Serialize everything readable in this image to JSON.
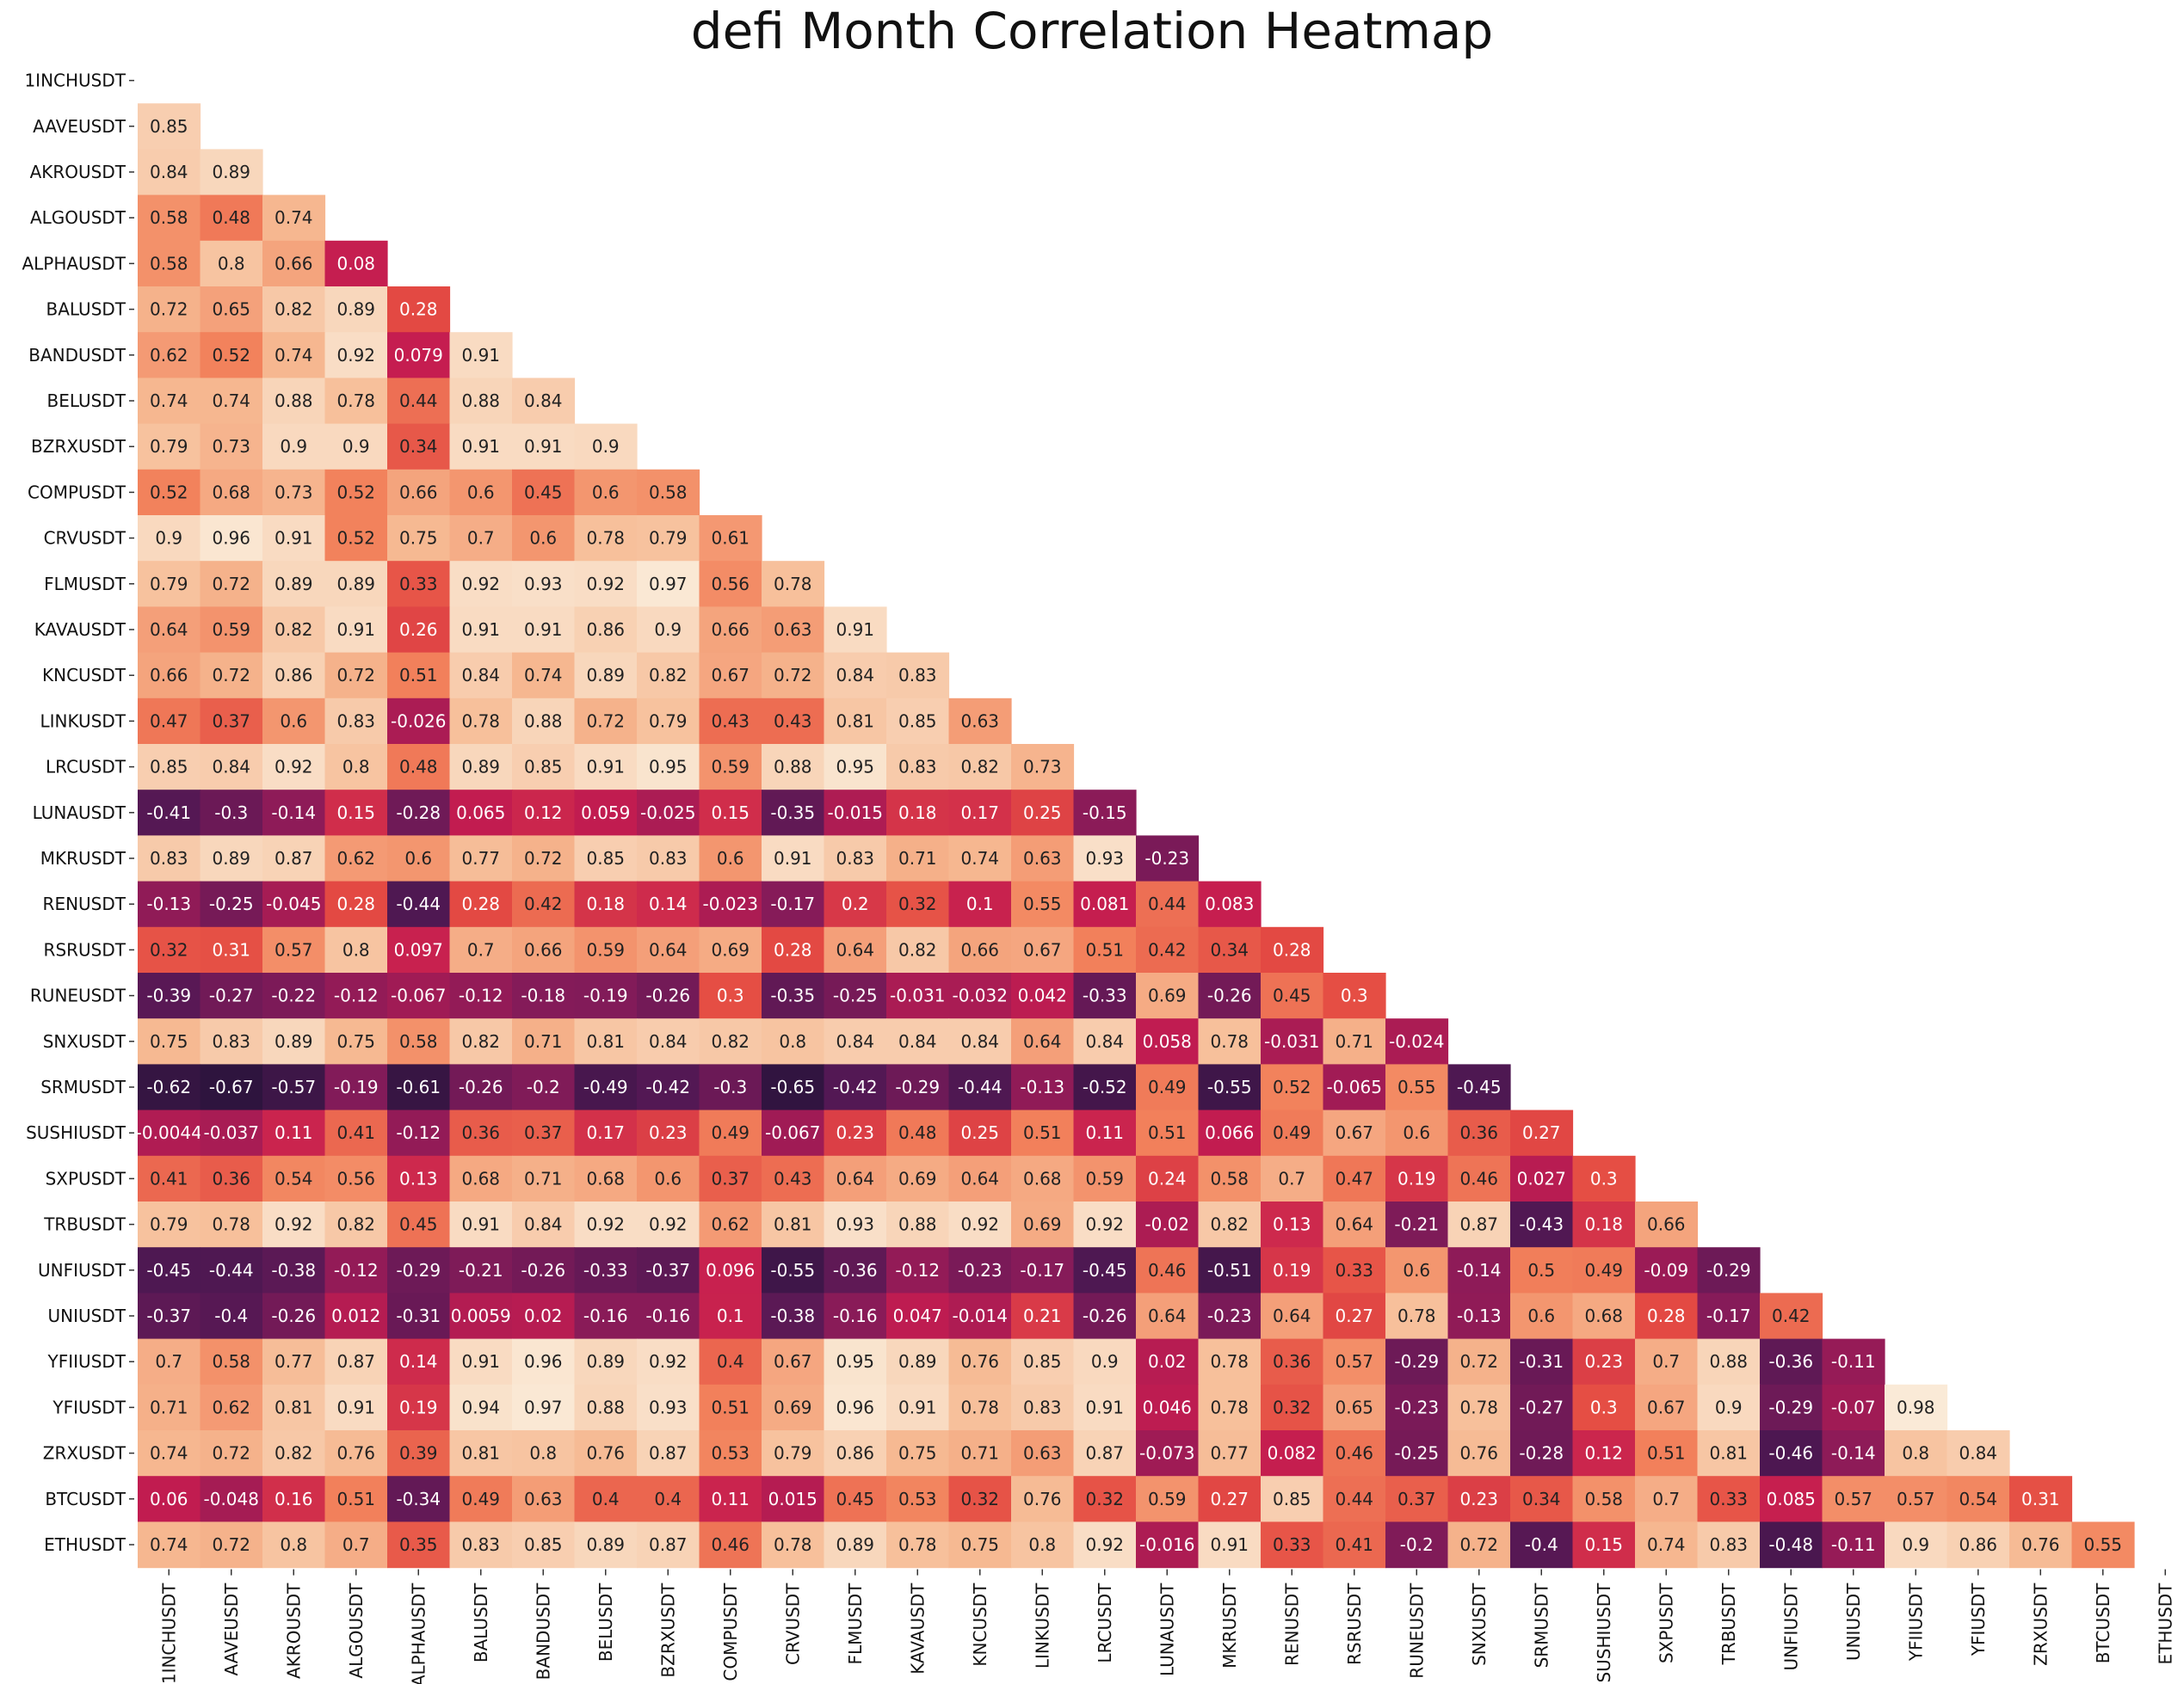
{
  "chart_data": {
    "type": "heatmap",
    "title": "defi Month Correlation Heatmap",
    "mask": "upper-triangle",
    "labels": [
      "1INCHUSDT",
      "AAVEUSDT",
      "AKROUSDT",
      "ALGOUSDT",
      "ALPHAUSDT",
      "BALUSDT",
      "BANDUSDT",
      "BELUSDT",
      "BZRXUSDT",
      "COMPUSDT",
      "CRVUSDT",
      "FLMUSDT",
      "KAVAUSDT",
      "KNCUSDT",
      "LINKUSDT",
      "LRCUSDT",
      "LUNAUSDT",
      "MKRUSDT",
      "RENUSDT",
      "RSRUSDT",
      "RUNEUSDT",
      "SNXUSDT",
      "SRMUSDT",
      "SUSHIUSDT",
      "SXPUSDT",
      "TRBUSDT",
      "UNFIUSDT",
      "UNIUSDT",
      "YFIIUSDT",
      "YFIUSDT",
      "ZRXUSDT",
      "BTCUSDT",
      "ETHUSDT"
    ],
    "rows": [
      [],
      [
        "0.85"
      ],
      [
        "0.84",
        "0.89"
      ],
      [
        "0.58",
        "0.48",
        "0.74"
      ],
      [
        "0.58",
        "0.8",
        "0.66",
        "0.08"
      ],
      [
        "0.72",
        "0.65",
        "0.82",
        "0.89",
        "0.28"
      ],
      [
        "0.62",
        "0.52",
        "0.74",
        "0.92",
        "0.079",
        "0.91"
      ],
      [
        "0.74",
        "0.74",
        "0.88",
        "0.78",
        "0.44",
        "0.88",
        "0.84"
      ],
      [
        "0.79",
        "0.73",
        "0.9",
        "0.9",
        "0.34",
        "0.91",
        "0.91",
        "0.9"
      ],
      [
        "0.52",
        "0.68",
        "0.73",
        "0.52",
        "0.66",
        "0.6",
        "0.45",
        "0.6",
        "0.58"
      ],
      [
        "0.9",
        "0.96",
        "0.91",
        "0.52",
        "0.75",
        "0.7",
        "0.6",
        "0.78",
        "0.79",
        "0.61"
      ],
      [
        "0.79",
        "0.72",
        "0.89",
        "0.89",
        "0.33",
        "0.92",
        "0.93",
        "0.92",
        "0.97",
        "0.56",
        "0.78"
      ],
      [
        "0.64",
        "0.59",
        "0.82",
        "0.91",
        "0.26",
        "0.91",
        "0.91",
        "0.86",
        "0.9",
        "0.66",
        "0.63",
        "0.91"
      ],
      [
        "0.66",
        "0.72",
        "0.86",
        "0.72",
        "0.51",
        "0.84",
        "0.74",
        "0.89",
        "0.82",
        "0.67",
        "0.72",
        "0.84",
        "0.83"
      ],
      [
        "0.47",
        "0.37",
        "0.6",
        "0.83",
        "-0.026",
        "0.78",
        "0.88",
        "0.72",
        "0.79",
        "0.43",
        "0.43",
        "0.81",
        "0.85",
        "0.63"
      ],
      [
        "0.85",
        "0.84",
        "0.92",
        "0.8",
        "0.48",
        "0.89",
        "0.85",
        "0.91",
        "0.95",
        "0.59",
        "0.88",
        "0.95",
        "0.83",
        "0.82",
        "0.73"
      ],
      [
        "-0.41",
        "-0.3",
        "-0.14",
        "0.15",
        "-0.28",
        "0.065",
        "0.12",
        "0.059",
        "-0.025",
        "0.15",
        "-0.35",
        "-0.015",
        "0.18",
        "0.17",
        "0.25",
        "-0.15"
      ],
      [
        "0.83",
        "0.89",
        "0.87",
        "0.62",
        "0.6",
        "0.77",
        "0.72",
        "0.85",
        "0.83",
        "0.6",
        "0.91",
        "0.83",
        "0.71",
        "0.74",
        "0.63",
        "0.93",
        "-0.23"
      ],
      [
        "-0.13",
        "-0.25",
        "-0.045",
        "0.28",
        "-0.44",
        "0.28",
        "0.42",
        "0.18",
        "0.14",
        "-0.023",
        "-0.17",
        "0.2",
        "0.32",
        "0.1",
        "0.55",
        "0.081",
        "0.44",
        "0.083"
      ],
      [
        "0.32",
        "0.31",
        "0.57",
        "0.8",
        "0.097",
        "0.7",
        "0.66",
        "0.59",
        "0.64",
        "0.69",
        "0.28",
        "0.64",
        "0.82",
        "0.66",
        "0.67",
        "0.51",
        "0.42",
        "0.34",
        "0.28"
      ],
      [
        "-0.39",
        "-0.27",
        "-0.22",
        "-0.12",
        "-0.067",
        "-0.12",
        "-0.18",
        "-0.19",
        "-0.26",
        "0.3",
        "-0.35",
        "-0.25",
        "-0.031",
        "-0.032",
        "0.042",
        "-0.33",
        "0.69",
        "-0.26",
        "0.45",
        "0.3"
      ],
      [
        "0.75",
        "0.83",
        "0.89",
        "0.75",
        "0.58",
        "0.82",
        "0.71",
        "0.81",
        "0.84",
        "0.82",
        "0.8",
        "0.84",
        "0.84",
        "0.84",
        "0.64",
        "0.84",
        "0.058",
        "0.78",
        "-0.031",
        "0.71",
        "-0.024"
      ],
      [
        "-0.62",
        "-0.67",
        "-0.57",
        "-0.19",
        "-0.61",
        "-0.26",
        "-0.2",
        "-0.49",
        "-0.42",
        "-0.3",
        "-0.65",
        "-0.42",
        "-0.29",
        "-0.44",
        "-0.13",
        "-0.52",
        "0.49",
        "-0.55",
        "0.52",
        "-0.065",
        "0.55",
        "-0.45"
      ],
      [
        "-0.0044",
        "-0.037",
        "0.11",
        "0.41",
        "-0.12",
        "0.36",
        "0.37",
        "0.17",
        "0.23",
        "0.49",
        "-0.067",
        "0.23",
        "0.48",
        "0.25",
        "0.51",
        "0.11",
        "0.51",
        "0.066",
        "0.49",
        "0.67",
        "0.6",
        "0.36",
        "0.27"
      ],
      [
        "0.41",
        "0.36",
        "0.54",
        "0.56",
        "0.13",
        "0.68",
        "0.71",
        "0.68",
        "0.6",
        "0.37",
        "0.43",
        "0.64",
        "0.69",
        "0.64",
        "0.68",
        "0.59",
        "0.24",
        "0.58",
        "0.7",
        "0.47",
        "0.19",
        "0.46",
        "0.027",
        "0.3"
      ],
      [
        "0.79",
        "0.78",
        "0.92",
        "0.82",
        "0.45",
        "0.91",
        "0.84",
        "0.92",
        "0.92",
        "0.62",
        "0.81",
        "0.93",
        "0.88",
        "0.92",
        "0.69",
        "0.92",
        "-0.02",
        "0.82",
        "0.13",
        "0.64",
        "-0.21",
        "0.87",
        "-0.43",
        "0.18",
        "0.66"
      ],
      [
        "-0.45",
        "-0.44",
        "-0.38",
        "-0.12",
        "-0.29",
        "-0.21",
        "-0.26",
        "-0.33",
        "-0.37",
        "0.096",
        "-0.55",
        "-0.36",
        "-0.12",
        "-0.23",
        "-0.17",
        "-0.45",
        "0.46",
        "-0.51",
        "0.19",
        "0.33",
        "0.6",
        "-0.14",
        "0.5",
        "0.49",
        "-0.09",
        "-0.29"
      ],
      [
        "-0.37",
        "-0.4",
        "-0.26",
        "0.012",
        "-0.31",
        "0.0059",
        "0.02",
        "-0.16",
        "-0.16",
        "0.1",
        "-0.38",
        "-0.16",
        "0.047",
        "-0.014",
        "0.21",
        "-0.26",
        "0.64",
        "-0.23",
        "0.64",
        "0.27",
        "0.78",
        "-0.13",
        "0.6",
        "0.68",
        "0.28",
        "-0.17",
        "0.42"
      ],
      [
        "0.7",
        "0.58",
        "0.77",
        "0.87",
        "0.14",
        "0.91",
        "0.96",
        "0.89",
        "0.92",
        "0.4",
        "0.67",
        "0.95",
        "0.89",
        "0.76",
        "0.85",
        "0.9",
        "0.02",
        "0.78",
        "0.36",
        "0.57",
        "-0.29",
        "0.72",
        "-0.31",
        "0.23",
        "0.7",
        "0.88",
        "-0.36",
        "-0.11"
      ],
      [
        "0.71",
        "0.62",
        "0.81",
        "0.91",
        "0.19",
        "0.94",
        "0.97",
        "0.88",
        "0.93",
        "0.51",
        "0.69",
        "0.96",
        "0.91",
        "0.78",
        "0.83",
        "0.91",
        "0.046",
        "0.78",
        "0.32",
        "0.65",
        "-0.23",
        "0.78",
        "-0.27",
        "0.3",
        "0.67",
        "0.9",
        "-0.29",
        "-0.07",
        "0.98"
      ],
      [
        "0.74",
        "0.72",
        "0.82",
        "0.76",
        "0.39",
        "0.81",
        "0.8",
        "0.76",
        "0.87",
        "0.53",
        "0.79",
        "0.86",
        "0.75",
        "0.71",
        "0.63",
        "0.87",
        "-0.073",
        "0.77",
        "0.082",
        "0.46",
        "-0.25",
        "0.76",
        "-0.28",
        "0.12",
        "0.51",
        "0.81",
        "-0.46",
        "-0.14",
        "0.8",
        "0.84"
      ],
      [
        "0.06",
        "-0.048",
        "0.16",
        "0.51",
        "-0.34",
        "0.49",
        "0.63",
        "0.4",
        "0.4",
        "0.11",
        "0.015",
        "0.45",
        "0.53",
        "0.32",
        "0.76",
        "0.32",
        "0.59",
        "0.27",
        "0.85",
        "0.44",
        "0.37",
        "0.23",
        "0.34",
        "0.58",
        "0.7",
        "0.33",
        "0.085",
        "0.57",
        "0.57",
        "0.54",
        "0.31"
      ],
      [
        "0.74",
        "0.72",
        "0.8",
        "0.7",
        "0.35",
        "0.83",
        "0.85",
        "0.89",
        "0.87",
        "0.46",
        "0.78",
        "0.89",
        "0.78",
        "0.75",
        "0.8",
        "0.92",
        "-0.016",
        "0.91",
        "0.33",
        "0.41",
        "-0.2",
        "0.72",
        "-0.4",
        "0.15",
        "0.74",
        "0.83",
        "-0.48",
        "-0.11",
        "0.9",
        "0.86",
        "0.76",
        "0.55"
      ]
    ]
  }
}
